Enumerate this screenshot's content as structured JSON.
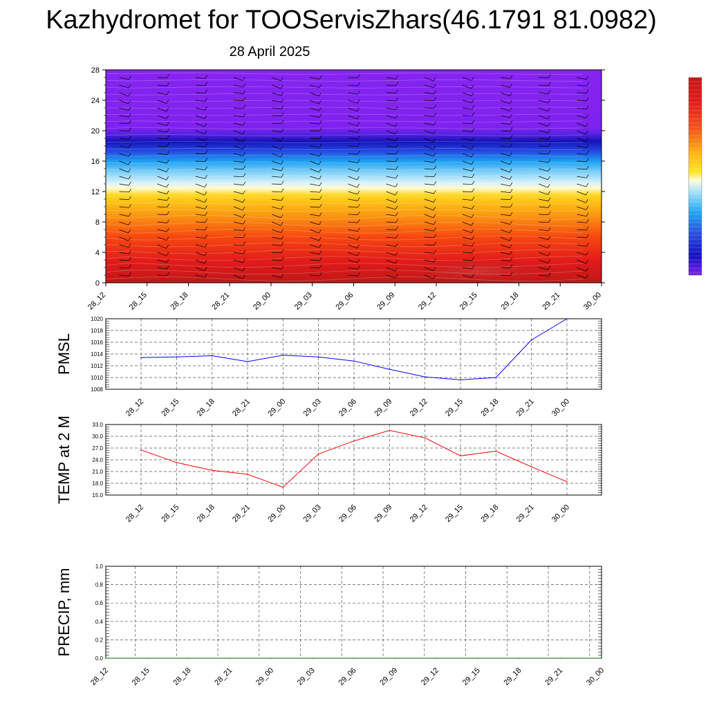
{
  "header": {
    "title": "Kazhydromet for TOOServisZhars(46.1791 81.0982)",
    "date": "28 April 2025"
  },
  "chart_data": [
    {
      "type": "heatmap",
      "title": "Kazhydromet for TOOServisZhars(46.1791 81.0982)",
      "subtitle": "28 April 2025",
      "xlabel": "",
      "ylabel": "",
      "x_ticks": [
        "28_12",
        "28_15",
        "28_18",
        "28_21",
        "29_00",
        "29_03",
        "29_06",
        "29_09",
        "29_12",
        "29_15",
        "29_18",
        "29_21",
        "30_00"
      ],
      "y_ticks": [
        0,
        4,
        8,
        12,
        16,
        20,
        24,
        28
      ],
      "ylim": [
        0,
        28
      ],
      "colorbar": "red-orange-yellow-white-cyan-blue-violet, values increasing with height",
      "overlay": "wind barbs",
      "grid": false
    },
    {
      "type": "line",
      "ylabel": "PMSL",
      "categories": [
        "28_12",
        "28_15",
        "28_18",
        "28_21",
        "29_00",
        "29_03",
        "29_06",
        "29_09",
        "29_12",
        "29_15",
        "29_18",
        "29_21",
        "30_00"
      ],
      "y_ticks": [
        "1008",
        "1010",
        "1012",
        "1014",
        "1016",
        "1018",
        "1020"
      ],
      "ylim": [
        1008,
        1020
      ],
      "values": [
        1013.4,
        1013.5,
        1013.7,
        1012.7,
        1013.8,
        1013.5,
        1012.8,
        1011.4,
        1010.1,
        1009.6,
        1010.0,
        1016.4,
        1020.0
      ],
      "color": "#0000ff",
      "grid": true
    },
    {
      "type": "line",
      "ylabel": "TEMP at 2 M",
      "categories": [
        "28_12",
        "28_15",
        "28_18",
        "28_21",
        "29_00",
        "29_03",
        "29_06",
        "29_09",
        "29_12",
        "29_15",
        "29_18",
        "29_21",
        "30_00"
      ],
      "y_ticks": [
        "15.0",
        "18.0",
        "21.0",
        "24.0",
        "27.0",
        "30.0",
        "33.0"
      ],
      "ylim": [
        15,
        33
      ],
      "values": [
        26.5,
        23.3,
        21.3,
        20.3,
        17.0,
        25.5,
        28.8,
        31.5,
        29.6,
        25.0,
        26.2,
        22.2,
        18.4
      ],
      "color": "#ff0000",
      "grid": true
    },
    {
      "type": "line",
      "ylabel": "PRECIP, mm",
      "categories": [
        "28_12",
        "28_15",
        "28_18",
        "28_21",
        "29_00",
        "29_03",
        "29_06",
        "29_09",
        "29_12",
        "29_15",
        "29_18",
        "29_21",
        "30_00"
      ],
      "y_ticks": [
        "0.0",
        "0.2",
        "0.4",
        "0.6",
        "0.8",
        "1.0"
      ],
      "ylim": [
        0,
        1
      ],
      "values": [
        0,
        0,
        0,
        0,
        0,
        0,
        0,
        0,
        0,
        0,
        0,
        0,
        0
      ],
      "color": "#006400",
      "grid": true
    }
  ]
}
